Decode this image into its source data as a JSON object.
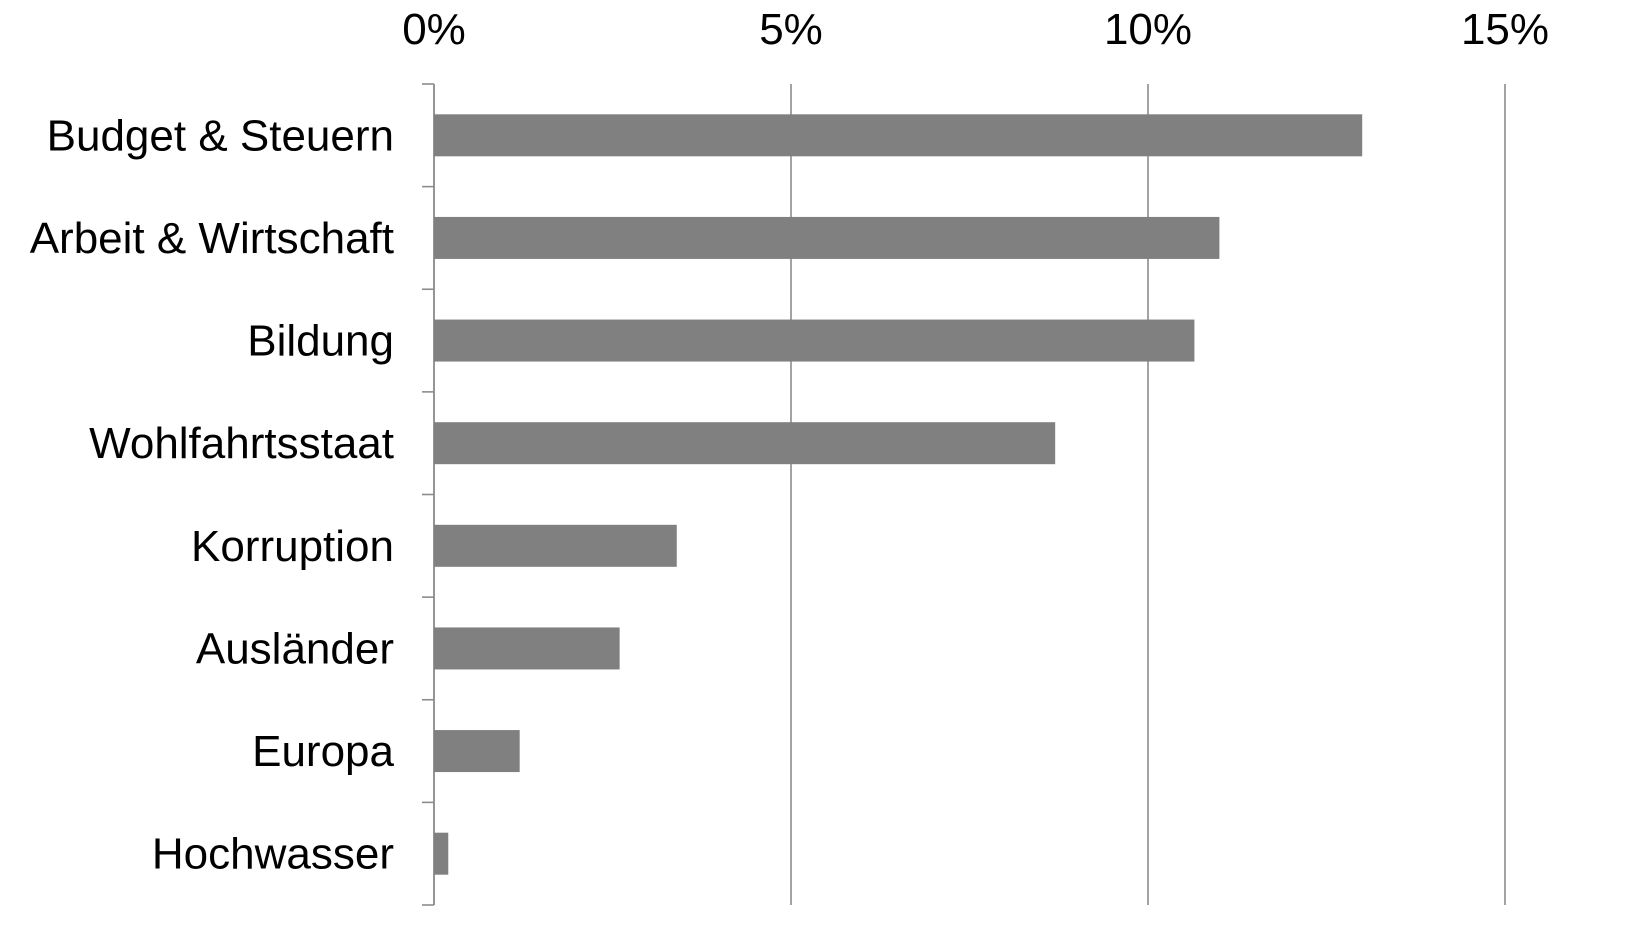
{
  "chart_data": {
    "type": "bar",
    "orientation": "horizontal",
    "categories": [
      "Budget & Steuern",
      "Arbeit & Wirtschaft",
      "Bildung",
      "Wohlfahrtsstaat",
      "Korruption",
      "Ausländer",
      "Europa",
      "Hochwasser"
    ],
    "values": [
      13.0,
      11.0,
      10.65,
      8.7,
      3.4,
      2.6,
      1.2,
      0.2
    ],
    "xlim": [
      0,
      15
    ],
    "xticks": [
      0,
      5,
      10,
      15
    ],
    "xtick_labels": [
      "0%",
      "5%",
      "10%",
      "15%"
    ],
    "x_axis_position": "top",
    "grid": true,
    "legend": "none",
    "colors": {
      "bar": "#808080",
      "grid": "#8c8c8c",
      "text": "#000000"
    }
  }
}
